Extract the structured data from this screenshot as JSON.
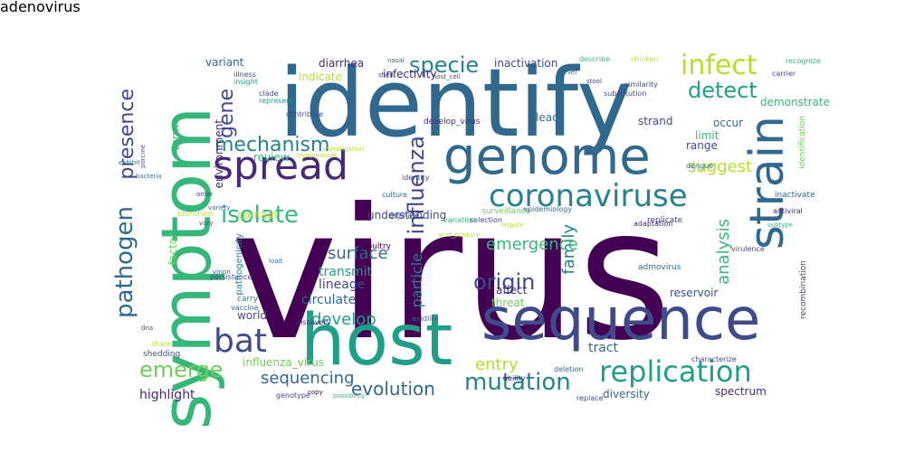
{
  "palette": {
    "dark_purple": "#440154",
    "purple": "#482878",
    "indigo": "#3e4a89",
    "blue": "#31688e",
    "teal": "#26828e",
    "green_teal": "#1f9e89",
    "green": "#35b779",
    "light_green": "#6ece58",
    "yellow_green": "#b5de2b",
    "yellow": "#fde725"
  },
  "words": [
    {
      "text": "virus",
      "color": "#440154"
    },
    {
      "text": "identify",
      "color": "#31688e"
    },
    {
      "text": "host",
      "color": "#1f9e89"
    },
    {
      "text": "symptom",
      "color": "#35b779"
    },
    {
      "text": "sequence",
      "color": "#3e4a89"
    },
    {
      "text": "genome",
      "color": "#31688e"
    },
    {
      "text": "strain",
      "color": "#31688e"
    },
    {
      "text": "spread",
      "color": "#482878"
    },
    {
      "text": "coronaviruse",
      "color": "#26828e"
    },
    {
      "text": "bat",
      "color": "#3e4a89"
    },
    {
      "text": "replication",
      "color": "#1f9e89"
    },
    {
      "text": "infect",
      "color": "#b5de2b"
    },
    {
      "text": "pathogen",
      "color": "#31688e"
    },
    {
      "text": "mutation",
      "color": "#26828e"
    },
    {
      "text": "isolate",
      "color": "#35b779"
    },
    {
      "text": "influenza",
      "color": "#3e4a89"
    },
    {
      "text": "specie",
      "color": "#26828e"
    },
    {
      "text": "detect",
      "color": "#1f9e89"
    },
    {
      "text": "mechanism",
      "color": "#26828e"
    },
    {
      "text": "emerge",
      "color": "#6ece58"
    },
    {
      "text": "origin",
      "color": "#3e4a89"
    },
    {
      "text": "gene",
      "color": "#3e4a89"
    },
    {
      "text": "presence",
      "color": "#3e4a89"
    },
    {
      "text": "suggest",
      "color": "#b5de2b"
    },
    {
      "text": "evolution",
      "color": "#31688e"
    },
    {
      "text": "analysis",
      "color": "#35b779"
    },
    {
      "text": "family",
      "color": "#26828e"
    },
    {
      "text": "develop",
      "color": "#1f9e89"
    },
    {
      "text": "sequencing",
      "color": "#31688e"
    },
    {
      "text": "particle",
      "color": "#26828e"
    },
    {
      "text": "emergence",
      "color": "#35b779"
    },
    {
      "text": "entry",
      "color": "#b5de2b"
    },
    {
      "text": "surface",
      "color": "#31688e"
    },
    {
      "text": "tract",
      "color": "#31688e"
    },
    {
      "text": "reservoir",
      "color": "#3e4a89"
    },
    {
      "text": "review",
      "color": "#35b779"
    },
    {
      "text": "world",
      "color": "#3e4a89"
    },
    {
      "text": "highlight",
      "color": "#482878"
    },
    {
      "text": "influenza_virus",
      "color": "#6ece58"
    },
    {
      "text": "spectrum",
      "color": "#482878"
    },
    {
      "text": "diversity",
      "color": "#31688e"
    },
    {
      "text": "transmit",
      "color": "#1f9e89"
    },
    {
      "text": "lineage",
      "color": "#3e4a89"
    },
    {
      "text": "circulate",
      "color": "#31688e"
    },
    {
      "text": "threat",
      "color": "#6ece58"
    },
    {
      "text": "affect",
      "color": "#482878"
    },
    {
      "text": "contain",
      "color": "#b5de2b"
    },
    {
      "text": "understanding",
      "color": "#3e4a89"
    },
    {
      "text": "indicate",
      "color": "#b5de2b"
    },
    {
      "text": "diarrhea",
      "color": "#482878"
    },
    {
      "text": "variant",
      "color": "#31688e"
    },
    {
      "text": "inactivation",
      "color": "#3e4a89"
    },
    {
      "text": "infectivity",
      "color": "#482878"
    },
    {
      "text": "lead",
      "color": "#31688e"
    },
    {
      "text": "strand",
      "color": "#3e4a89"
    },
    {
      "text": "limit",
      "color": "#35b779"
    },
    {
      "text": "range",
      "color": "#3e4a89"
    },
    {
      "text": "demonstrate",
      "color": "#35b779"
    },
    {
      "text": "occur",
      "color": "#31688e"
    },
    {
      "text": "term",
      "color": "#35b779"
    },
    {
      "text": "environment",
      "color": "#482878"
    },
    {
      "text": "factor",
      "color": "#6ece58"
    },
    {
      "text": "pathogenicity",
      "color": "#26828e"
    },
    {
      "text": "recombination",
      "color": "#3e4a89"
    },
    {
      "text": "identification",
      "color": "#6ece58"
    },
    {
      "text": "inactivate",
      "color": "#31688e"
    },
    {
      "text": "surveillance",
      "color": "#6ece58"
    },
    {
      "text": "epidemiology",
      "color": "#31688e"
    },
    {
      "text": "develop_virus",
      "color": "#482878"
    },
    {
      "text": "virulence",
      "color": "#3e4a89"
    },
    {
      "text": "admovirus",
      "color": "#31688e"
    },
    {
      "text": "replicate",
      "color": "#3e4a89"
    },
    {
      "text": "characterize",
      "color": "#3e4a89"
    },
    {
      "text": "adaptation",
      "color": "#482878"
    },
    {
      "text": "antiviral",
      "color": "#482878"
    },
    {
      "text": "subtype",
      "color": "#35b779"
    },
    {
      "text": "dengue",
      "color": "#31688e"
    },
    {
      "text": "poultry",
      "color": "#440154"
    },
    {
      "text": "selection",
      "color": "#3e4a89"
    },
    {
      "text": "variation",
      "color": "#35b779"
    },
    {
      "text": "shedding",
      "color": "#3e4a89"
    },
    {
      "text": "persistence",
      "color": "#3e4a89"
    },
    {
      "text": "carry",
      "color": "#26828e"
    },
    {
      "text": "vaccine",
      "color": "#31688e"
    },
    {
      "text": "identity",
      "color": "#3e4a89"
    },
    {
      "text": "deletion",
      "color": "#31688e"
    },
    {
      "text": "ability",
      "color": "#482878"
    },
    {
      "text": "replace",
      "color": "#3e4a89"
    },
    {
      "text": "genotype",
      "color": "#3e4a89"
    },
    {
      "text": "possibility",
      "color": "#35b779"
    },
    {
      "text": "copy",
      "color": "#440154"
    },
    {
      "text": "share",
      "color": "#b5de2b"
    },
    {
      "text": "avidlife",
      "color": "#31688e"
    },
    {
      "text": "discovery",
      "color": "#482878"
    },
    {
      "text": "bronchitis",
      "color": "#b5de2b"
    },
    {
      "text": "culture",
      "color": "#31688e"
    },
    {
      "text": "orginate",
      "color": "#3e4a89"
    },
    {
      "text": "describe",
      "color": "#35b779"
    },
    {
      "text": "chicken",
      "color": "#b5de2b"
    },
    {
      "text": "recognize",
      "color": "#35b779"
    },
    {
      "text": "carrier",
      "color": "#3e4a89"
    },
    {
      "text": "similarity",
      "color": "#3e4a89"
    },
    {
      "text": "substitution",
      "color": "#3e4a89"
    },
    {
      "text": "insight",
      "color": "#1f9e89"
    },
    {
      "text": "illness",
      "color": "#3e4a89"
    },
    {
      "text": "represent",
      "color": "#1f9e89"
    },
    {
      "text": "contribute",
      "color": "#3e4a89"
    },
    {
      "text": "clade",
      "color": "#3e4a89"
    },
    {
      "text": "fever",
      "color": "#31688e"
    },
    {
      "text": "nasal",
      "color": "#31688e"
    },
    {
      "text": "stool",
      "color": "#3e4a89"
    },
    {
      "text": "host_cell",
      "color": "#3e4a89"
    },
    {
      "text": "investigation",
      "color": "#b5de2b"
    },
    {
      "text": "shed",
      "color": "#3e4a89"
    },
    {
      "text": "load",
      "color": "#31688e"
    },
    {
      "text": "temperature",
      "color": "#b5de2b"
    },
    {
      "text": "require",
      "color": "#b5de2b"
    },
    {
      "text": "acid_produce",
      "color": "#b5de2b"
    },
    {
      "text": "exhibit",
      "color": "#31688e"
    },
    {
      "text": "porcine",
      "color": "#3e4a89"
    },
    {
      "text": "bacteria",
      "color": "#26828e"
    },
    {
      "text": "order",
      "color": "#3e4a89"
    },
    {
      "text": "vary",
      "color": "#3e4a89"
    },
    {
      "text": "variety",
      "color": "#31688e"
    },
    {
      "text": "virion",
      "color": "#31688e"
    },
    {
      "text": "dna",
      "color": "#3e4a89"
    },
    {
      "text": "adenovirus",
      "color": "#3e4a89"
    }
  ]
}
